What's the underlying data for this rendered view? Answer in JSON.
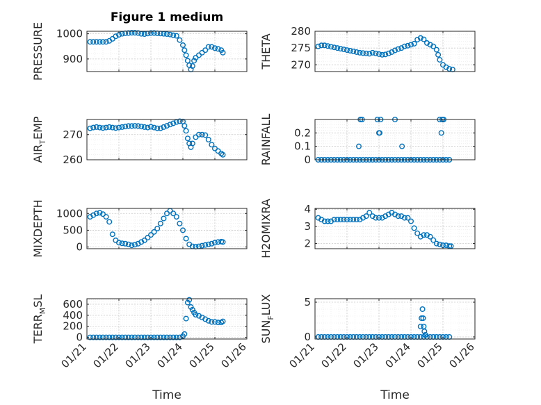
{
  "figure_title": "Figure 1 medium",
  "x_axis_label": "Time",
  "x_tick_labels": [
    "01/21",
    "01/22",
    "01/23",
    "01/24",
    "01/25",
    "01/26"
  ],
  "marker_color": "#0072BD",
  "chart_data": [
    {
      "type": "scatter",
      "ylabel": "PRESSURE",
      "ylim": [
        850,
        1010
      ],
      "yticks": [
        900,
        1000
      ],
      "xlim": [
        21,
        26
      ],
      "x": [
        21.1,
        21.2,
        21.3,
        21.4,
        21.5,
        21.6,
        21.7,
        21.8,
        21.9,
        22.0,
        22.1,
        22.2,
        22.3,
        22.4,
        22.5,
        22.6,
        22.7,
        22.8,
        22.9,
        23.0,
        23.1,
        23.2,
        23.3,
        23.4,
        23.5,
        23.6,
        23.7,
        23.8,
        23.9,
        24.0,
        24.05,
        24.1,
        24.15,
        24.2,
        24.25,
        24.3,
        24.35,
        24.4,
        24.5,
        24.6,
        24.7,
        24.8,
        24.9,
        25.0,
        25.1,
        25.2,
        25.25
      ],
      "y": [
        968,
        968,
        968,
        968,
        968,
        968,
        972,
        980,
        990,
        996,
        1000,
        1002,
        1003,
        1004,
        1004,
        1003,
        1000,
        999,
        1001,
        1003,
        1003,
        1002,
        1001,
        1000,
        999,
        997,
        994,
        992,
        975,
        955,
        935,
        915,
        893,
        875,
        858,
        872,
        893,
        905,
        915,
        925,
        935,
        948,
        948,
        943,
        940,
        935,
        925
      ]
    },
    {
      "type": "scatter",
      "ylabel": "THETA",
      "ylim": [
        268,
        280
      ],
      "yticks": [
        270,
        275,
        280
      ],
      "xlim": [
        21,
        26
      ],
      "x": [
        21.1,
        21.2,
        21.3,
        21.4,
        21.5,
        21.6,
        21.7,
        21.8,
        21.9,
        22.0,
        22.1,
        22.2,
        22.3,
        22.4,
        22.5,
        22.6,
        22.7,
        22.8,
        22.9,
        23.0,
        23.1,
        23.2,
        23.3,
        23.4,
        23.5,
        23.6,
        23.7,
        23.8,
        23.9,
        24.0,
        24.1,
        24.2,
        24.3,
        24.4,
        24.5,
        24.6,
        24.7,
        24.8,
        24.85,
        24.9,
        25.0,
        25.1,
        25.2,
        25.3
      ],
      "y": [
        275.5,
        275.8,
        275.8,
        275.6,
        275.4,
        275.2,
        275.0,
        274.8,
        274.6,
        274.4,
        274.2,
        274.0,
        273.8,
        273.6,
        273.5,
        273.4,
        273.3,
        273.6,
        273.4,
        273.2,
        273.0,
        273.1,
        273.4,
        273.8,
        274.3,
        274.7,
        275.0,
        275.5,
        275.7,
        276.0,
        276.3,
        277.5,
        278.0,
        277.6,
        276.5,
        276.0,
        275.5,
        274.5,
        273.0,
        271.5,
        270.0,
        269.3,
        268.8,
        268.6
      ]
    },
    {
      "type": "scatter",
      "ylabel": "AIR_TEMP",
      "ylim": [
        260,
        276
      ],
      "yticks": [
        260,
        270
      ],
      "xlim": [
        21,
        26
      ],
      "x": [
        21.1,
        21.2,
        21.3,
        21.4,
        21.5,
        21.6,
        21.7,
        21.8,
        21.9,
        22.0,
        22.1,
        22.2,
        22.3,
        22.4,
        22.5,
        22.6,
        22.7,
        22.8,
        22.9,
        23.0,
        23.1,
        23.2,
        23.3,
        23.4,
        23.5,
        23.6,
        23.7,
        23.8,
        23.9,
        24.0,
        24.05,
        24.1,
        24.15,
        24.2,
        24.25,
        24.3,
        24.4,
        24.5,
        24.6,
        24.7,
        24.8,
        24.9,
        25.0,
        25.1,
        25.2,
        25.25
      ],
      "y": [
        272.5,
        272.8,
        273.0,
        272.8,
        272.6,
        272.8,
        273.0,
        272.8,
        272.6,
        272.8,
        273.0,
        273.2,
        273.4,
        273.4,
        273.5,
        273.4,
        273.2,
        273.0,
        272.8,
        273.1,
        272.8,
        272.5,
        272.5,
        273.0,
        273.5,
        274.0,
        274.5,
        275.0,
        275.3,
        275.2,
        273.5,
        271.5,
        268.5,
        266.5,
        265.0,
        266.5,
        269.0,
        270.0,
        270.0,
        269.8,
        268.0,
        266.0,
        264.5,
        263.5,
        262.5,
        262.0
      ]
    },
    {
      "type": "scatter",
      "ylabel": "RAINFALL",
      "ylim": [
        0,
        0.3
      ],
      "yticks": [
        0,
        0.1,
        0.2
      ],
      "xlim": [
        21,
        26
      ],
      "x": [
        21.1,
        21.2,
        21.3,
        21.4,
        21.5,
        21.6,
        21.7,
        21.8,
        21.9,
        22.0,
        22.1,
        22.2,
        22.3,
        22.4,
        22.5,
        22.6,
        22.7,
        22.8,
        22.9,
        23.0,
        23.1,
        23.2,
        23.3,
        23.4,
        23.5,
        23.6,
        23.7,
        23.8,
        23.9,
        24.0,
        24.1,
        24.2,
        24.3,
        24.4,
        24.5,
        24.6,
        24.7,
        24.8,
        24.9,
        25.0,
        25.1,
        25.2,
        22.37,
        22.42,
        22.47,
        22.95,
        23.0,
        23.02,
        23.05,
        23.5,
        23.72,
        24.9,
        24.95,
        24.98,
        25.02
      ],
      "y": [
        0,
        0,
        0,
        0,
        0,
        0,
        0,
        0,
        0,
        0,
        0,
        0,
        0,
        0,
        0,
        0,
        0,
        0,
        0,
        0,
        0,
        0,
        0,
        0,
        0,
        0,
        0,
        0,
        0,
        0,
        0,
        0,
        0,
        0,
        0,
        0,
        0,
        0,
        0,
        0,
        0,
        0,
        0.1,
        0.3,
        0.3,
        0.3,
        0.2,
        0.2,
        0.3,
        0.3,
        0.1,
        0.3,
        0.2,
        0.3,
        0.3
      ]
    },
    {
      "type": "scatter",
      "ylabel": "MIXDEPTH",
      "ylim": [
        -50,
        1150
      ],
      "yticks": [
        0,
        500,
        1000
      ],
      "xlim": [
        21,
        26
      ],
      "x": [
        21.1,
        21.2,
        21.3,
        21.4,
        21.5,
        21.6,
        21.7,
        21.8,
        21.9,
        22.0,
        22.1,
        22.2,
        22.3,
        22.4,
        22.5,
        22.6,
        22.7,
        22.8,
        22.9,
        23.0,
        23.1,
        23.2,
        23.3,
        23.4,
        23.5,
        23.6,
        23.7,
        23.8,
        23.9,
        24.0,
        24.1,
        24.2,
        24.3,
        24.4,
        24.5,
        24.6,
        24.7,
        24.8,
        24.9,
        25.0,
        25.1,
        25.2,
        25.25
      ],
      "y": [
        900,
        950,
        1000,
        1020,
        980,
        900,
        750,
        380,
        200,
        130,
        110,
        100,
        80,
        50,
        70,
        100,
        150,
        200,
        280,
        360,
        450,
        550,
        700,
        850,
        1000,
        1080,
        1000,
        900,
        700,
        500,
        250,
        80,
        20,
        10,
        20,
        40,
        60,
        80,
        100,
        130,
        150,
        160,
        150
      ]
    },
    {
      "type": "scatter",
      "ylabel": "H2OMIXRA",
      "ylim": [
        1.7,
        4.05
      ],
      "yticks": [
        2,
        3,
        4
      ],
      "xlim": [
        21,
        26
      ],
      "x": [
        21.1,
        21.2,
        21.3,
        21.4,
        21.5,
        21.6,
        21.7,
        21.8,
        21.9,
        22.0,
        22.1,
        22.2,
        22.3,
        22.4,
        22.5,
        22.6,
        22.7,
        22.8,
        22.9,
        23.0,
        23.1,
        23.2,
        23.3,
        23.4,
        23.5,
        23.6,
        23.7,
        23.8,
        23.9,
        24.0,
        24.1,
        24.2,
        24.3,
        24.4,
        24.5,
        24.6,
        24.7,
        24.8,
        24.9,
        25.0,
        25.1,
        25.2,
        25.25
      ],
      "y": [
        3.5,
        3.4,
        3.3,
        3.3,
        3.3,
        3.4,
        3.4,
        3.4,
        3.4,
        3.4,
        3.4,
        3.4,
        3.4,
        3.4,
        3.5,
        3.6,
        3.8,
        3.6,
        3.5,
        3.5,
        3.5,
        3.6,
        3.7,
        3.8,
        3.7,
        3.6,
        3.6,
        3.5,
        3.5,
        3.3,
        2.9,
        2.6,
        2.4,
        2.5,
        2.5,
        2.4,
        2.2,
        2.0,
        1.95,
        1.9,
        1.9,
        1.85,
        1.85
      ]
    },
    {
      "type": "scatter",
      "ylabel": "TERR_MSL",
      "ylim": [
        -30,
        700
      ],
      "yticks": [
        0,
        200,
        400,
        600
      ],
      "xlim": [
        21,
        26
      ],
      "x": [
        21.1,
        21.2,
        21.3,
        21.4,
        21.5,
        21.6,
        21.7,
        21.8,
        21.9,
        22.0,
        22.1,
        22.2,
        22.3,
        22.4,
        22.5,
        22.6,
        22.7,
        22.8,
        22.9,
        23.0,
        23.1,
        23.2,
        23.3,
        23.4,
        23.5,
        23.6,
        23.7,
        23.8,
        23.9,
        24.0,
        24.05,
        24.1,
        24.15,
        24.2,
        24.25,
        24.3,
        24.35,
        24.4,
        24.5,
        24.6,
        24.7,
        24.8,
        24.9,
        25.0,
        25.1,
        25.2,
        25.25
      ],
      "y": [
        0,
        0,
        0,
        0,
        0,
        0,
        0,
        0,
        0,
        0,
        0,
        0,
        0,
        0,
        0,
        0,
        0,
        0,
        0,
        0,
        0,
        0,
        0,
        0,
        0,
        0,
        0,
        0,
        0,
        20,
        60,
        340,
        630,
        680,
        550,
        500,
        450,
        410,
        390,
        360,
        330,
        300,
        280,
        280,
        270,
        270,
        290
      ]
    },
    {
      "type": "scatter",
      "ylabel": "SUN_FLUX",
      "ylim": [
        -0.3,
        5.5
      ],
      "yticks": [
        0,
        5
      ],
      "xlim": [
        21,
        26
      ],
      "x": [
        21.1,
        21.2,
        21.3,
        21.4,
        21.5,
        21.6,
        21.7,
        21.8,
        21.9,
        22.0,
        22.1,
        22.2,
        22.3,
        22.4,
        22.5,
        22.6,
        22.7,
        22.8,
        22.9,
        23.0,
        23.1,
        23.2,
        23.3,
        23.4,
        23.5,
        23.6,
        23.7,
        23.8,
        23.9,
        24.0,
        24.1,
        24.2,
        24.3,
        24.4,
        24.5,
        24.6,
        24.7,
        24.8,
        24.9,
        25.0,
        25.1,
        25.2,
        24.3,
        24.33,
        24.36,
        24.38,
        24.4,
        24.42,
        24.45
      ],
      "y": [
        0,
        0,
        0,
        0,
        0,
        0,
        0,
        0,
        0,
        0,
        0,
        0,
        0,
        0,
        0,
        0,
        0,
        0,
        0,
        0,
        0,
        0,
        0,
        0,
        0,
        0,
        0,
        0,
        0,
        0,
        0,
        0,
        0,
        0,
        0,
        0,
        0,
        0,
        0,
        0,
        0,
        0,
        1.5,
        2.7,
        4.0,
        2.7,
        1.5,
        0.8,
        0.3
      ]
    }
  ]
}
